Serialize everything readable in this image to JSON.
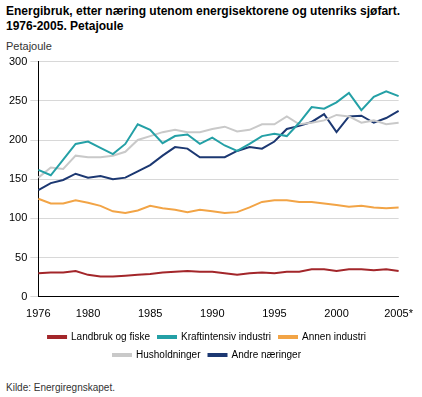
{
  "chart_data": {
    "type": "line",
    "title": "Energibruk, etter næring utenom energisektorene og utenriks sjøfart. 1976-2005. Petajoule",
    "y_label": "Petajoule",
    "source": "Kilde: Energiregnskapet.",
    "categories": [
      "1976",
      null,
      null,
      null,
      "1980",
      null,
      null,
      null,
      null,
      "1985",
      null,
      null,
      null,
      null,
      "1990",
      null,
      null,
      null,
      null,
      "1995",
      null,
      null,
      null,
      null,
      "2000",
      null,
      null,
      null,
      null,
      "2005*"
    ],
    "series": [
      {
        "name": "Landbruk og fiske",
        "color": "#a3262a",
        "values": [
          30,
          31,
          31,
          33,
          28,
          26,
          26,
          27,
          28,
          29,
          31,
          32,
          33,
          32,
          32,
          30,
          28,
          30,
          31,
          30,
          32,
          32,
          35,
          35,
          33,
          35,
          35,
          34,
          35,
          33
        ]
      },
      {
        "name": "Kraftintensiv industri",
        "color": "#24a0a6",
        "values": [
          162,
          155,
          175,
          195,
          198,
          190,
          182,
          195,
          220,
          213,
          196,
          205,
          207,
          195,
          203,
          193,
          186,
          195,
          205,
          208,
          205,
          222,
          242,
          240,
          248,
          260,
          238,
          255,
          262,
          256
        ]
      },
      {
        "name": "Annen industri",
        "color": "#f2a446",
        "values": [
          125,
          119,
          119,
          123,
          120,
          116,
          109,
          107,
          110,
          116,
          113,
          111,
          108,
          111,
          109,
          107,
          108,
          114,
          121,
          123,
          123,
          121,
          121,
          119,
          117,
          115,
          116,
          114,
          113,
          114
        ]
      },
      {
        "name": "Husholdninger",
        "color": "#c9c9c9",
        "values": [
          152,
          165,
          163,
          180,
          178,
          178,
          180,
          185,
          200,
          205,
          210,
          213,
          210,
          210,
          214,
          217,
          211,
          213,
          220,
          220,
          230,
          220,
          222,
          225,
          232,
          230,
          222,
          225,
          220,
          222
        ]
      },
      {
        "name": "Andre næringer",
        "color": "#1c3872",
        "values": [
          136,
          145,
          149,
          157,
          152,
          154,
          150,
          152,
          160,
          168,
          180,
          191,
          189,
          178,
          178,
          178,
          186,
          191,
          189,
          198,
          214,
          218,
          223,
          233,
          210,
          230,
          231,
          222,
          228,
          237
        ]
      }
    ],
    "ylim": [
      0,
      300
    ],
    "yticks": [
      0,
      50,
      100,
      150,
      200,
      250,
      300
    ],
    "grid": true,
    "legend": "bottom"
  }
}
